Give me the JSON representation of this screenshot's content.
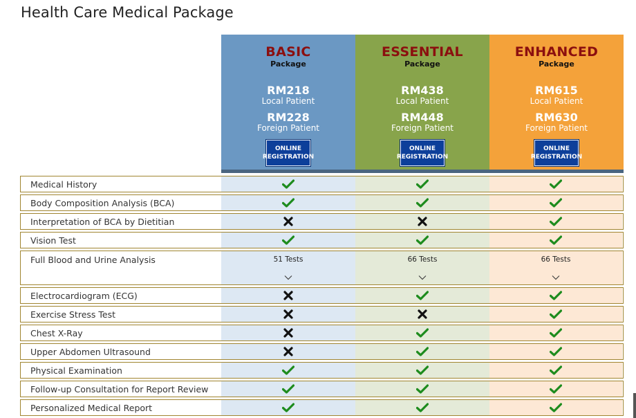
{
  "page": {
    "title": "Health Care Medical Package"
  },
  "packages": [
    {
      "name": "BASIC",
      "sub": "Package",
      "local_price": "RM218",
      "local_label": "Local Patient",
      "foreign_price": "RM228",
      "foreign_label": "Foreign Patient",
      "button_line1": "ONLINE",
      "button_line2": "REGISTRATION",
      "color": "#6b98c3"
    },
    {
      "name": "ESSENTIAL",
      "sub": "Package",
      "local_price": "RM438",
      "local_label": "Local Patient",
      "foreign_price": "RM448",
      "foreign_label": "Foreign Patient",
      "button_line1": "ONLINE",
      "button_line2": "REGISTRATION",
      "color": "#88a44b"
    },
    {
      "name": "ENHANCED",
      "sub": "Package",
      "local_price": "RM615",
      "local_label": "Local Patient",
      "foreign_price": "RM630",
      "foreign_label": "Foreign Patient",
      "button_line1": "ONLINE",
      "button_line2": "REGISTRATION",
      "color": "#f4a23a"
    }
  ],
  "rows": [
    {
      "label": "Medical History",
      "values": [
        "check",
        "check",
        "check"
      ]
    },
    {
      "label": "Body Composition Analysis (BCA)",
      "values": [
        "check",
        "check",
        "check"
      ]
    },
    {
      "label": "Interpretation of BCA by Dietitian",
      "values": [
        "cross",
        "cross",
        "check"
      ]
    },
    {
      "label": "Vision Test",
      "values": [
        "check",
        "check",
        "check"
      ]
    },
    {
      "label": "Full Blood and Urine Analysis",
      "values": [
        "51 Tests",
        "66 Tests",
        "66 Tests"
      ],
      "expandable": true
    },
    {
      "label": "Electrocardiogram (ECG)",
      "values": [
        "cross",
        "check",
        "check"
      ]
    },
    {
      "label": "Exercise Stress Test",
      "values": [
        "cross",
        "cross",
        "check"
      ]
    },
    {
      "label": "Chest X-Ray",
      "values": [
        "cross",
        "check",
        "check"
      ]
    },
    {
      "label": "Upper Abdomen Ultrasound",
      "values": [
        "cross",
        "check",
        "check"
      ]
    },
    {
      "label": "Physical Examination",
      "values": [
        "check",
        "check",
        "check"
      ]
    },
    {
      "label": "Follow-up Consultation for Report Review",
      "values": [
        "check",
        "check",
        "check"
      ]
    },
    {
      "label": "Personalized Medical Report",
      "values": [
        "check",
        "check",
        "check"
      ]
    }
  ],
  "icons": {
    "check": "check-icon",
    "cross": "cross-icon",
    "expand": "chevron-down-icon"
  },
  "colors": {
    "check": "#1e8c1e",
    "cross": "#111111",
    "row_border": "#a08530",
    "package_name": "#8b0f0f",
    "button": "#0d3f9a"
  }
}
